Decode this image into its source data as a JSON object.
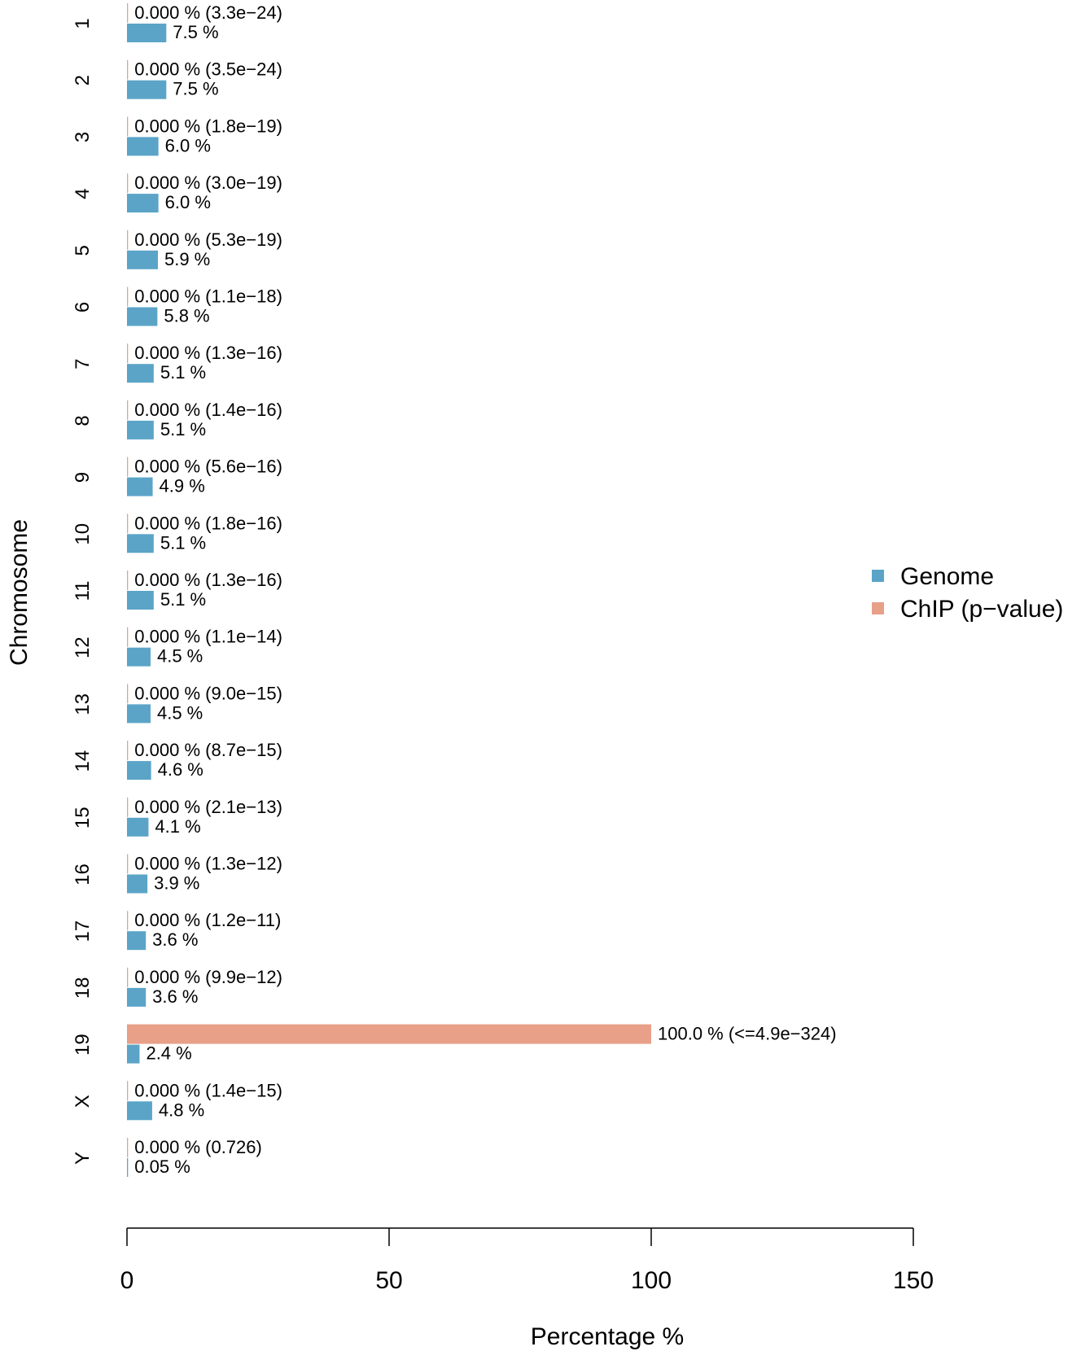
{
  "chart_data": {
    "type": "bar",
    "orientation": "horizontal",
    "xlabel": "Percentage %",
    "ylabel": "Chromosome",
    "xlim": [
      0,
      150
    ],
    "xticks": [
      "0",
      "50",
      "100",
      "150"
    ],
    "grid": false,
    "legend_position": "right",
    "categories": [
      "1",
      "2",
      "3",
      "4",
      "5",
      "6",
      "7",
      "8",
      "9",
      "10",
      "11",
      "12",
      "13",
      "14",
      "15",
      "16",
      "17",
      "18",
      "19",
      "X",
      "Y"
    ],
    "series": [
      {
        "name": "Genome",
        "color": "#5ba4c8",
        "values": [
          7.5,
          7.5,
          6.0,
          6.0,
          5.9,
          5.8,
          5.1,
          5.1,
          4.9,
          5.1,
          5.1,
          4.5,
          4.5,
          4.6,
          4.1,
          3.9,
          3.6,
          3.6,
          2.4,
          4.8,
          0.05
        ],
        "labels": [
          "7.5 %",
          "7.5 %",
          "6.0 %",
          "6.0 %",
          "5.9 %",
          "5.8 %",
          "5.1 %",
          "5.1 %",
          "4.9 %",
          "5.1 %",
          "5.1 %",
          "4.5 %",
          "4.5 %",
          "4.6 %",
          "4.1 %",
          "3.9 %",
          "3.6 %",
          "3.6 %",
          "2.4 %",
          "4.8 %",
          "0.05 %"
        ]
      },
      {
        "name": "ChIP (p−value)",
        "color": "#e8a088",
        "values": [
          0,
          0,
          0,
          0,
          0,
          0,
          0,
          0,
          0,
          0,
          0,
          0,
          0,
          0,
          0,
          0,
          0,
          0,
          100.0,
          0,
          0
        ],
        "labels": [
          "0.000 % (3.3e−24)",
          "0.000 % (3.5e−24)",
          "0.000 % (1.8e−19)",
          "0.000 % (3.0e−19)",
          "0.000 % (5.3e−19)",
          "0.000 % (1.1e−18)",
          "0.000 % (1.3e−16)",
          "0.000 % (1.4e−16)",
          "0.000 % (5.6e−16)",
          "0.000 % (1.8e−16)",
          "0.000 % (1.3e−16)",
          "0.000 % (1.1e−14)",
          "0.000 % (9.0e−15)",
          "0.000 % (8.7e−15)",
          "0.000 % (2.1e−13)",
          "0.000 % (1.3e−12)",
          "0.000 % (1.2e−11)",
          "0.000 % (9.9e−12)",
          "100.0 % (<=4.9e−324)",
          "0.000 % (1.4e−15)",
          "0.000 % (0.726)"
        ]
      }
    ]
  }
}
